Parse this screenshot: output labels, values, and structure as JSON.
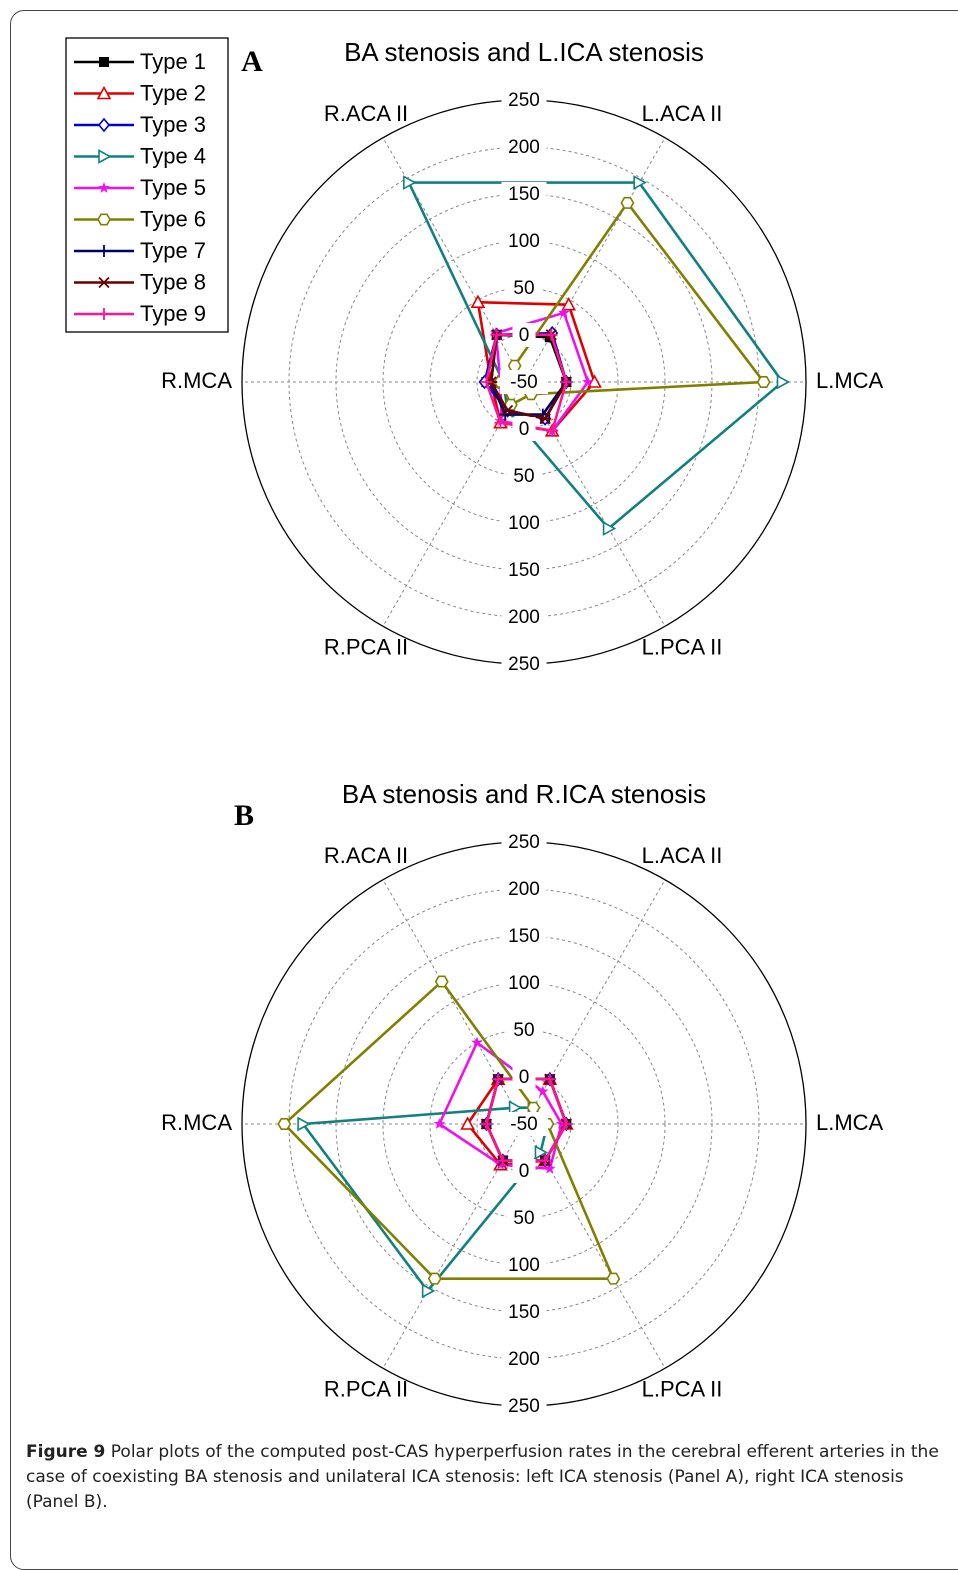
{
  "chart_data": [
    {
      "type": "polar-line",
      "panel": "A",
      "title": "BA stenosis and L.ICA stenosis",
      "axes": [
        "L.MCA",
        "L.ACA II",
        "R.ACA II",
        "R.MCA",
        "R.PCA II",
        "L.PCA II"
      ],
      "r_tick_labels_upper": [
        "0",
        "50",
        "100",
        "150",
        "200",
        "250"
      ],
      "r_tick_labels_lower": [
        "0",
        "50",
        "100",
        "150",
        "200",
        "250"
      ],
      "center_label": "-50",
      "rlim": [
        -50,
        250
      ],
      "grid": true,
      "legend": "top-left",
      "series": [
        {
          "name": "Type 1",
          "color": "#000000",
          "marker": "square",
          "values": [
            -5,
            5,
            8,
            -10,
            -15,
            -5
          ]
        },
        {
          "name": "Type 2",
          "color": "#e00000",
          "marker": "triangle",
          "values": [
            25,
            45,
            48,
            -15,
            0,
            10
          ]
        },
        {
          "name": "Type 3",
          "color": "#0000cc",
          "marker": "diamond",
          "values": [
            -5,
            10,
            8,
            -8,
            -15,
            -5
          ]
        },
        {
          "name": "Type 4",
          "color": "#138080",
          "marker": "triangle-right",
          "values": [
            225,
            195,
            195,
            -28,
            -15,
            130
          ]
        },
        {
          "name": "Type 5",
          "color": "#ee11ee",
          "marker": "star",
          "values": [
            18,
            35,
            10,
            -25,
            -2,
            10
          ]
        },
        {
          "name": "Type 6",
          "color": "#808000",
          "marker": "hexagon",
          "values": [
            205,
            170,
            -30,
            -25,
            -22,
            -35
          ]
        },
        {
          "name": "Type 7",
          "color": "#000066",
          "marker": "plus",
          "values": [
            -5,
            8,
            8,
            -15,
            -10,
            -10
          ]
        },
        {
          "name": "Type 8",
          "color": "#660000",
          "marker": "x",
          "values": [
            -5,
            8,
            8,
            -15,
            -15,
            -5
          ]
        },
        {
          "name": "Type 9",
          "color": "#ff1493",
          "marker": "plus",
          "values": [
            -5,
            8,
            8,
            -10,
            0,
            10
          ]
        }
      ]
    },
    {
      "type": "polar-line",
      "panel": "B",
      "title": "BA stenosis and R.ICA stenosis",
      "axes": [
        "L.MCA",
        "L.ACA II",
        "R.ACA II",
        "R.MCA",
        "R.PCA II",
        "L.PCA II"
      ],
      "r_tick_labels_upper": [
        "0",
        "50",
        "100",
        "150",
        "200",
        "250"
      ],
      "r_tick_labels_lower": [
        "0",
        "50",
        "100",
        "150",
        "200",
        "250"
      ],
      "center_label": "-50",
      "rlim": [
        -50,
        250
      ],
      "grid": true,
      "legend": "none",
      "series": [
        {
          "name": "Type 1",
          "color": "#000000",
          "values": [
            -5,
            5,
            5,
            -10,
            -5,
            -5
          ]
        },
        {
          "name": "Type 2",
          "color": "#e00000",
          "values": [
            -5,
            5,
            5,
            10,
            0,
            -5
          ]
        },
        {
          "name": "Type 3",
          "color": "#0000cc",
          "values": [
            -5,
            5,
            5,
            -10,
            -5,
            -5
          ]
        },
        {
          "name": "Type 4",
          "color": "#138080",
          "values": [
            -25,
            -30,
            -30,
            185,
            155,
            -15
          ]
        },
        {
          "name": "Type 5",
          "color": "#ee11ee",
          "values": [
            -10,
            -10,
            50,
            40,
            0,
            5
          ]
        },
        {
          "name": "Type 6",
          "color": "#808000",
          "values": [
            -25,
            -30,
            125,
            205,
            140,
            140
          ]
        },
        {
          "name": "Type 7",
          "color": "#000066",
          "values": [
            -5,
            5,
            5,
            -10,
            -5,
            -5
          ]
        },
        {
          "name": "Type 8",
          "color": "#660000",
          "values": [
            -5,
            5,
            5,
            -10,
            -5,
            -5
          ]
        },
        {
          "name": "Type 9",
          "color": "#ff1493",
          "values": [
            -5,
            5,
            5,
            -10,
            -5,
            -5
          ]
        }
      ]
    }
  ],
  "caption": {
    "label": "Figure 9",
    "text": " Polar plots of the computed post-CAS hyperperfusion rates in the cerebral efferent arteries in the case of coexisting BA stenosis and unilateral ICA stenosis: left ICA stenosis (Panel A), right ICA stenosis (Panel B)."
  }
}
